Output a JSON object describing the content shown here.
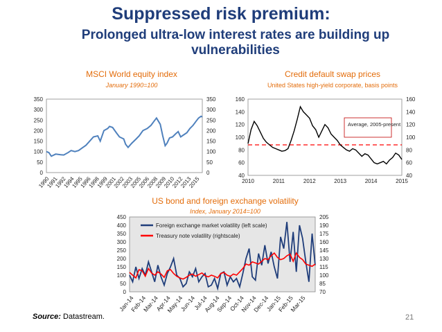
{
  "slide": {
    "title": "Suppressed risk premium:",
    "subtitle": "Prolonged ultra-low interest rates are building up vulnerabilities",
    "source_label": "Source:",
    "source_text": " Datastream.",
    "page_number": "21"
  },
  "colors": {
    "title": "#1f3d7a",
    "chart_title": "#e36c0a",
    "equity_line": "#4f81bd",
    "cds_line": "#000000",
    "fx_line": "#1f3d7a",
    "treasury_line": "#ff0000",
    "avg_line": "#ff0000",
    "plot_bg": "#e6e6e6"
  },
  "chart_data": [
    {
      "id": "msci",
      "type": "line",
      "title": "MSCI World equity index",
      "subtitle": "January 1990=100",
      "x_tick_labels": [
        "1990",
        "1991",
        "1992",
        "1994",
        "1995",
        "1996",
        "1998",
        "1999",
        "2001",
        "2002",
        "2003",
        "2005",
        "2006",
        "2008",
        "2009",
        "2010",
        "2012",
        "2013",
        "2015"
      ],
      "xlim": [
        1990,
        2015.2
      ],
      "ylim": [
        0,
        350
      ],
      "y_ticks_left": [
        0,
        50,
        100,
        150,
        200,
        250,
        300,
        350
      ],
      "y_ticks_right": [
        0,
        50,
        100,
        150,
        200,
        250,
        300,
        350
      ],
      "grid": false,
      "series": [
        {
          "x": [
            1990,
            1990.4,
            1990.8,
            1991.5,
            1992.3,
            1992.8,
            1993.5,
            1994,
            1994.6,
            1995.2,
            1995.8,
            1996.4,
            1997,
            1997.6,
            1998.3,
            1998.7,
            1999.3,
            1999.9,
            2000.2,
            2000.7,
            2001.3,
            2001.8,
            2002.5,
            2002.8,
            2003.2,
            2003.8,
            2004.5,
            2005,
            2005.6,
            2006.3,
            2006.9,
            2007.4,
            2007.8,
            2008.4,
            2008.8,
            2009.2,
            2009.5,
            2009.9,
            2010.4,
            2010.9,
            2011.3,
            2011.7,
            2012.2,
            2012.7,
            2013.2,
            2013.7,
            2014.2,
            2014.6,
            2015.0,
            2015.2
          ],
          "y": [
            100,
            95,
            78,
            88,
            85,
            84,
            95,
            105,
            100,
            105,
            118,
            130,
            150,
            170,
            175,
            150,
            200,
            210,
            220,
            215,
            190,
            170,
            160,
            135,
            120,
            140,
            160,
            175,
            200,
            210,
            225,
            245,
            260,
            230,
            175,
            128,
            140,
            165,
            170,
            185,
            195,
            170,
            180,
            190,
            210,
            225,
            245,
            260,
            268,
            265
          ]
        }
      ]
    },
    {
      "id": "cds",
      "type": "line",
      "title": "Credit default swap prices",
      "subtitle": "United States high-yield corporate, basis points",
      "x_tick_labels": [
        "2010",
        "2011",
        "2012",
        "2013",
        "2014",
        "2015"
      ],
      "xlim": [
        2010,
        2015
      ],
      "ylim": [
        40,
        160
      ],
      "y_ticks_left": [
        40,
        60,
        80,
        100,
        120,
        140,
        160
      ],
      "y_ticks_right": [
        40,
        60,
        80,
        100,
        120,
        140,
        160
      ],
      "annotation": "Average, 2005-present",
      "average": 88,
      "grid": false,
      "series": [
        {
          "x": [
            2010,
            2010.1,
            2010.2,
            2010.3,
            2010.4,
            2010.5,
            2010.6,
            2010.7,
            2010.8,
            2010.9,
            2011,
            2011.1,
            2011.2,
            2011.3,
            2011.4,
            2011.5,
            2011.6,
            2011.7,
            2011.8,
            2011.9,
            2012,
            2012.1,
            2012.2,
            2012.3,
            2012.4,
            2012.5,
            2012.6,
            2012.7,
            2012.8,
            2012.9,
            2013,
            2013.1,
            2013.2,
            2013.3,
            2013.4,
            2013.5,
            2013.6,
            2013.7,
            2013.8,
            2013.9,
            2014,
            2014.1,
            2014.2,
            2014.3,
            2014.4,
            2014.5,
            2014.6,
            2014.7,
            2014.8,
            2014.9,
            2015
          ],
          "y": [
            90,
            112,
            125,
            118,
            108,
            98,
            92,
            88,
            84,
            82,
            80,
            78,
            79,
            82,
            95,
            110,
            128,
            148,
            140,
            135,
            130,
            118,
            112,
            100,
            110,
            120,
            115,
            105,
            100,
            95,
            88,
            84,
            80,
            78,
            82,
            80,
            75,
            70,
            74,
            72,
            66,
            60,
            58,
            60,
            62,
            58,
            64,
            68,
            75,
            72,
            65
          ]
        }
      ]
    },
    {
      "id": "volatility",
      "type": "line",
      "title": "US bond and foreign exchange volatility",
      "subtitle": "Index, January 2014=100",
      "x_tick_labels": [
        "Jan-14",
        "Feb-14",
        "Mar-14",
        "Apr-14",
        "May-14",
        "Jun-14",
        "Jul-14",
        "Aug-14",
        "Sep-14",
        "Oct-14",
        "Nov-14",
        "Dec-14",
        "Jan-15",
        "Feb-15",
        "Mar-15"
      ],
      "ylim_left": [
        0,
        450
      ],
      "ylim_right": [
        70,
        205
      ],
      "y_ticks_left": [
        0,
        50,
        100,
        150,
        200,
        250,
        300,
        350,
        400,
        450
      ],
      "y_ticks_right": [
        70,
        85,
        100,
        115,
        130,
        145,
        160,
        175,
        190,
        205
      ],
      "legend_placement": "top-left",
      "grid": false,
      "series": [
        {
          "name": "Foreign exchange market volatility (left scale)",
          "axis": "left",
          "y": [
            100,
            60,
            150,
            80,
            140,
            100,
            180,
            120,
            60,
            160,
            90,
            40,
            110,
            150,
            200,
            100,
            80,
            30,
            50,
            120,
            90,
            140,
            60,
            90,
            110,
            30,
            40,
            80,
            20,
            110,
            120,
            40,
            90,
            60,
            80,
            30,
            110,
            200,
            260,
            90,
            70,
            230,
            160,
            280,
            170,
            240,
            150,
            80,
            330,
            260,
            420,
            180,
            360,
            120,
            400,
            320,
            180,
            60,
            350,
            160
          ]
        },
        {
          "name": "Treasury note volatility (rightscale)",
          "axis": "right",
          "y": [
            105,
            100,
            95,
            110,
            108,
            98,
            112,
            104,
            100,
            106,
            102,
            96,
            108,
            110,
            103,
            98,
            95,
            93,
            96,
            100,
            102,
            98,
            101,
            104,
            99,
            97,
            100,
            98,
            95,
            103,
            105,
            100,
            98,
            102,
            100,
            106,
            112,
            120,
            118,
            124,
            122,
            120,
            125,
            130,
            128,
            135,
            140,
            132,
            128,
            130,
            135,
            138,
            125,
            140,
            132,
            128,
            120,
            118,
            116,
            120
          ]
        }
      ]
    }
  ]
}
